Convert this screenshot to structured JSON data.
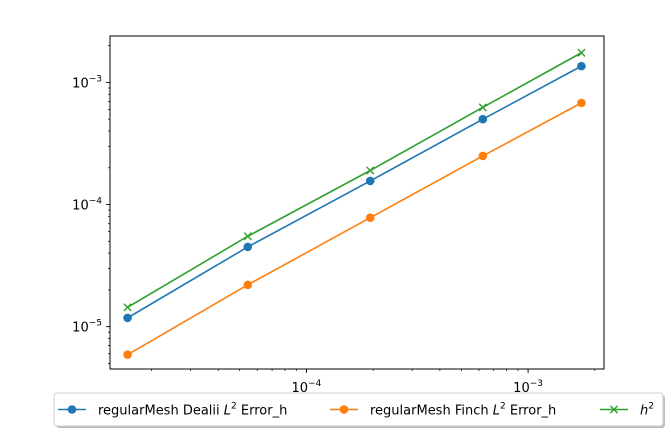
{
  "chart_data": {
    "type": "line",
    "xscale": "log",
    "yscale": "log",
    "xlim": [
      1.3e-05,
      0.0022
    ],
    "ylim": [
      4.5e-06,
      0.0024
    ],
    "x": [
      1.56e-05,
      5.44e-05,
      0.000194,
      0.000625,
      0.00174
    ],
    "series": [
      {
        "name": "regularMesh Dealii $L^2$ Error_h",
        "legend_main": "regularMesh Dealii ",
        "legend_sup_base": "L",
        "legend_sup": "2",
        "legend_tail": " Error_h",
        "color": "#1f77b4",
        "marker": "circle",
        "values": [
          1.18e-05,
          4.5e-05,
          0.000156,
          0.0005,
          0.00136
        ]
      },
      {
        "name": "regularMesh Finch $L^2$ Error_h",
        "legend_main": "regularMesh Finch ",
        "legend_sup_base": "L",
        "legend_sup": "2",
        "legend_tail": " Error_h",
        "color": "#ff7f0e",
        "marker": "circle",
        "values": [
          5.9e-06,
          2.2e-05,
          7.8e-05,
          0.00025,
          0.00068
        ]
      },
      {
        "name": "$h^2$",
        "legend_main": "",
        "legend_sup_base": "h",
        "legend_sup": "2",
        "legend_tail": "",
        "color": "#2ca02c",
        "marker": "x",
        "values": [
          1.44e-05,
          5.5e-05,
          0.00019,
          0.000625,
          0.00175
        ]
      }
    ],
    "xticks": [
      {
        "value": 0.0001,
        "base": "10",
        "exp": "−4"
      },
      {
        "value": 0.001,
        "base": "10",
        "exp": "−3"
      }
    ],
    "yticks": [
      {
        "value": 1e-05,
        "base": "10",
        "exp": "−5"
      },
      {
        "value": 0.0001,
        "base": "10",
        "exp": "−4"
      },
      {
        "value": 0.001,
        "base": "10",
        "exp": "−3"
      }
    ],
    "legend_position": "bottom-center",
    "grid": false
  }
}
